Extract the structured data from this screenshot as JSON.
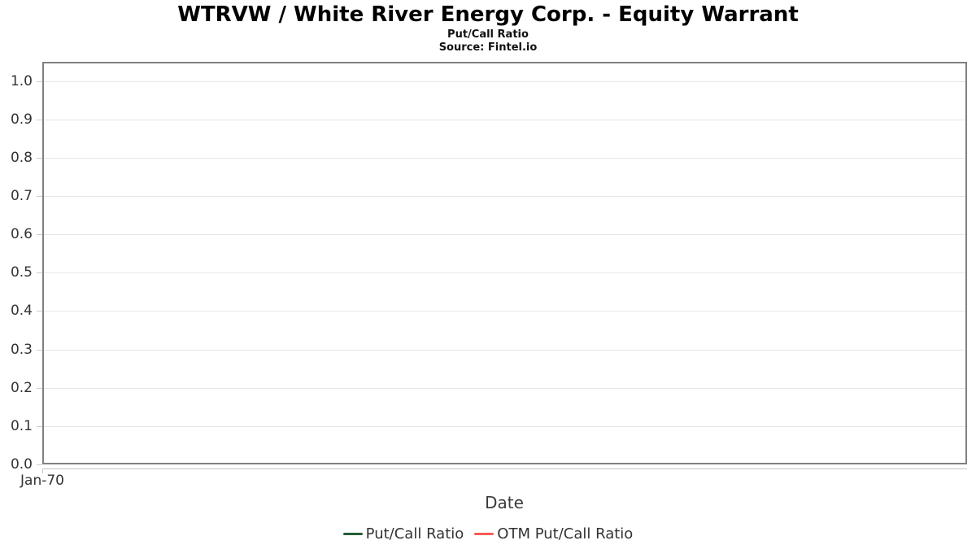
{
  "chart_data": {
    "type": "line",
    "title": "WTRVW / White River Energy Corp. - Equity Warrant",
    "subtitle": "Put/Call Ratio",
    "source": "Source: Fintel.io",
    "xlabel": "Date",
    "ylabel": "",
    "x_tick_labels": [
      "Jan-70"
    ],
    "y_tick_labels": [
      "0.0",
      "0.1",
      "0.2",
      "0.3",
      "0.4",
      "0.5",
      "0.6",
      "0.7",
      "0.8",
      "0.9",
      "1.0"
    ],
    "ylim": [
      0,
      1.05
    ],
    "grid": "horizontal-only",
    "legend_position": "bottom-center",
    "series": [
      {
        "name": "Put/Call Ratio",
        "color": "#265f38",
        "x": [],
        "values": []
      },
      {
        "name": "OTM Put/Call Ratio",
        "color": "#f95a56",
        "x": [],
        "values": []
      }
    ]
  },
  "colors": {
    "plot_border": "#808080",
    "gridline": "#e6e6e6",
    "axis_line": "#c6c6c6",
    "tick": "#cccccc",
    "text": "#333333",
    "title_text": "#000000",
    "background": "#ffffff"
  }
}
